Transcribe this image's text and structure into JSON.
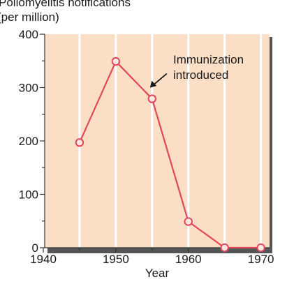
{
  "chart_data": {
    "type": "line",
    "xlabel": "Year",
    "ylabel_line1": "Poliomyelitis notifications",
    "ylabel_line2": "(per million)",
    "xlim": [
      1940,
      1971
    ],
    "ylim": [
      0,
      400
    ],
    "x_ticks": [
      1940,
      1950,
      1960,
      1970
    ],
    "y_ticks": [
      0,
      100,
      200,
      300,
      400
    ],
    "grid": "vertical",
    "series": [
      {
        "x": [
          1945,
          1950,
          1955,
          1960,
          1965,
          1970
        ],
        "values": [
          197,
          349,
          279,
          49,
          0,
          0
        ]
      }
    ],
    "annotation": {
      "line1": "Immunization",
      "line2": "introduced",
      "points_to": {
        "x": 1955,
        "y": 279
      }
    },
    "colors": {
      "line": "#e0475b",
      "marker_fill": "#fbe8e2",
      "plot_background": "#fadfc6",
      "grid": "#ffffff",
      "axis": "#333333",
      "shadow": "#555555"
    }
  }
}
